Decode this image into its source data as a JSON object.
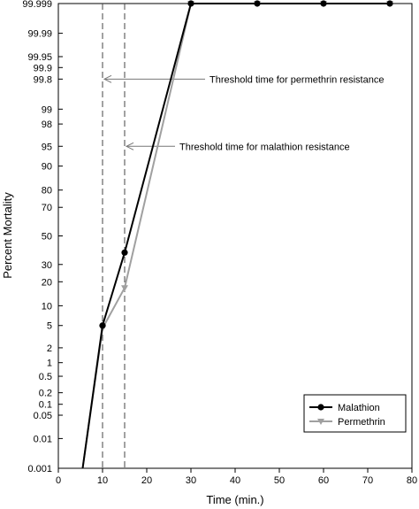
{
  "chart_data": {
    "type": "line",
    "title": "",
    "xlabel": "Time (min.)",
    "ylabel": "Percent Mortality",
    "y_scale": "probit",
    "xlim": [
      0,
      80
    ],
    "ylim": [
      0.001,
      99.999
    ],
    "x_ticks": [
      0,
      10,
      20,
      30,
      40,
      50,
      60,
      70,
      80
    ],
    "y_ticks": [
      {
        "value": 0.001,
        "label": "0.001"
      },
      {
        "value": 0.01,
        "label": "0.01"
      },
      {
        "value": 0.05,
        "label": "0.05"
      },
      {
        "value": 0.1,
        "label": "0.1"
      },
      {
        "value": 0.2,
        "label": "0.2"
      },
      {
        "value": 0.5,
        "label": "0.5"
      },
      {
        "value": 1,
        "label": "1"
      },
      {
        "value": 2,
        "label": "2"
      },
      {
        "value": 5,
        "label": "5"
      },
      {
        "value": 10,
        "label": "10"
      },
      {
        "value": 20,
        "label": "20"
      },
      {
        "value": 30,
        "label": "30"
      },
      {
        "value": 50,
        "label": "50"
      },
      {
        "value": 70,
        "label": "70"
      },
      {
        "value": 80,
        "label": "80"
      },
      {
        "value": 90,
        "label": "90"
      },
      {
        "value": 95,
        "label": "95"
      },
      {
        "value": 98,
        "label": "98"
      },
      {
        "value": 99,
        "label": "99"
      },
      {
        "value": 99.8,
        "label": "99.8"
      },
      {
        "value": 99.9,
        "label": "99.9"
      },
      {
        "value": 99.95,
        "label": "99.95"
      },
      {
        "value": 99.99,
        "label": "99.99"
      },
      {
        "value": 99.999,
        "label": "99.999"
      }
    ],
    "grid": false,
    "legend_position": "bottom-right",
    "series": [
      {
        "name": "Malathion",
        "color": "#000000",
        "marker": "circle",
        "line_start": {
          "x": 5.5,
          "y": 0.001
        },
        "points": [
          {
            "x": 10,
            "y": 5
          },
          {
            "x": 15,
            "y": 38
          },
          {
            "x": 30,
            "y": 99.999
          },
          {
            "x": 45,
            "y": 99.999
          },
          {
            "x": 60,
            "y": 99.999
          },
          {
            "x": 75,
            "y": 99.999
          }
        ]
      },
      {
        "name": "Permethrin",
        "color": "#a0a0a0",
        "marker": "triangle-down",
        "line_start": {
          "x": 5.5,
          "y": 0.001
        },
        "points": [
          {
            "x": 10,
            "y": 4.5
          },
          {
            "x": 15,
            "y": 17
          },
          {
            "x": 30,
            "y": 99.999
          },
          {
            "x": 45,
            "y": 99.999
          },
          {
            "x": 60,
            "y": 99.999
          },
          {
            "x": 75,
            "y": 99.999
          }
        ]
      }
    ],
    "threshold_lines": [
      {
        "x": 10,
        "label": "Threshold time for permethrin resistance",
        "arrow_y": 99.8
      },
      {
        "x": 15,
        "label": "Threshold time for malathion resistance",
        "arrow_y": 95
      }
    ]
  }
}
